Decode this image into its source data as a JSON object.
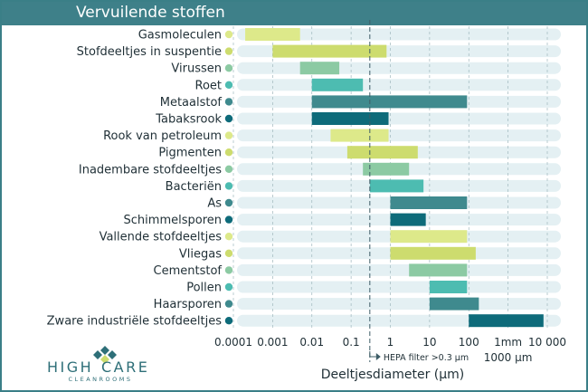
{
  "chart_data": {
    "type": "bar",
    "title": "Vervuilende stoffen",
    "xlabel": "Deeltjesdiameter (µm)",
    "ylabel": "",
    "x_scale": "log",
    "xlim": [
      0.0001,
      10000
    ],
    "grid": true,
    "xticks": [
      {
        "value": 0.0001,
        "label": "0.0001"
      },
      {
        "value": 0.001,
        "label": "0.001"
      },
      {
        "value": 0.01,
        "label": "0.01"
      },
      {
        "value": 0.1,
        "label": "0.1"
      },
      {
        "value": 1,
        "label": "1"
      },
      {
        "value": 10,
        "label": "10"
      },
      {
        "value": 100,
        "label": "100"
      },
      {
        "value": 1000,
        "label": "1mm"
      },
      {
        "value": 10000,
        "label": "10 000"
      }
    ],
    "secondary_tick": {
      "value": 1000,
      "label": "1000 µm"
    },
    "annotation": {
      "value": 0.3,
      "label": "HEPA filter >0.3 µm"
    },
    "colors": {
      "light_green": "#dde98a",
      "lime": "#cddc6e",
      "mint": "#8ccaa3",
      "teal": "#4dbcb1",
      "slate": "#3f8a8e",
      "dark": "#0e6b7a",
      "track": "#e4f0f3"
    },
    "categories": [
      "Gasmoleculen",
      "Stofdeeltjes in suspentie",
      "Virussen",
      "Roet",
      "Metaalstof",
      "Tabaksrook",
      "Rook van petroleum",
      "Pigmenten",
      "Inadembare stofdeeltjes",
      "Bacteriën",
      "As",
      "Schimmelsporen",
      "Vallende stofdeeltjes",
      "Vliegas",
      "Cementstof",
      "Pollen",
      "Haarsporen",
      "Zware industriële stofdeeltjes"
    ],
    "ranges": [
      {
        "min": 0.0002,
        "max": 0.005,
        "color": "light_green"
      },
      {
        "min": 0.001,
        "max": 0.8,
        "color": "lime"
      },
      {
        "min": 0.005,
        "max": 0.05,
        "color": "mint"
      },
      {
        "min": 0.01,
        "max": 0.2,
        "color": "teal"
      },
      {
        "min": 0.01,
        "max": 90,
        "color": "slate"
      },
      {
        "min": 0.01,
        "max": 0.9,
        "color": "dark"
      },
      {
        "min": 0.03,
        "max": 0.9,
        "color": "light_green"
      },
      {
        "min": 0.08,
        "max": 5,
        "color": "lime"
      },
      {
        "min": 0.2,
        "max": 3,
        "color": "mint"
      },
      {
        "min": 0.3,
        "max": 7,
        "color": "teal"
      },
      {
        "min": 1,
        "max": 90,
        "color": "slate"
      },
      {
        "min": 1,
        "max": 8,
        "color": "dark"
      },
      {
        "min": 1,
        "max": 90,
        "color": "light_green"
      },
      {
        "min": 1,
        "max": 150,
        "color": "lime"
      },
      {
        "min": 3,
        "max": 90,
        "color": "mint"
      },
      {
        "min": 10,
        "max": 90,
        "color": "teal"
      },
      {
        "min": 10,
        "max": 180,
        "color": "slate"
      },
      {
        "min": 100,
        "max": 8000,
        "color": "dark"
      }
    ]
  },
  "logo": {
    "word_high": "HIGH",
    "word_care": "CARE",
    "tagline": "CLEANROOMS"
  }
}
